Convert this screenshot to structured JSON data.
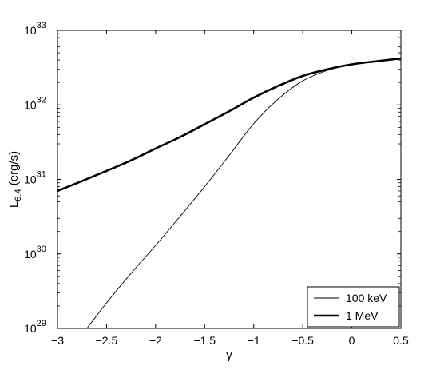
{
  "chart_data": {
    "type": "line",
    "title": "",
    "xlabel": "γ",
    "ylabel_main": "L",
    "ylabel_sub": "6.4",
    "ylabel_unit": " (erg/s)",
    "xlim": [
      -3,
      0.5
    ],
    "ylim": [
      1e+29,
      1e+33
    ],
    "yscale": "log",
    "grid": false,
    "legend_position": "bottom-right",
    "x_ticks": [
      {
        "value": -3,
        "label": "−3"
      },
      {
        "value": -2.5,
        "label": "−2.5"
      },
      {
        "value": -2,
        "label": "−2"
      },
      {
        "value": -1.5,
        "label": "−1.5"
      },
      {
        "value": -1,
        "label": "−1"
      },
      {
        "value": -0.5,
        "label": "−0.5"
      },
      {
        "value": 0,
        "label": "0"
      },
      {
        "value": 0.5,
        "label": "0.5"
      }
    ],
    "y_ticks": [
      {
        "value": 1e+29,
        "base": "10",
        "exp": "29"
      },
      {
        "value": 1e+30,
        "base": "10",
        "exp": "30"
      },
      {
        "value": 1e+31,
        "base": "10",
        "exp": "31"
      },
      {
        "value": 1e+32,
        "base": "10",
        "exp": "32"
      },
      {
        "value": 1e+33,
        "base": "10",
        "exp": "33"
      }
    ],
    "series": [
      {
        "name": "100 keV",
        "style": "thin",
        "color": "#000000",
        "x": [
          -2.7,
          -2.5,
          -2.25,
          -2.0,
          -1.75,
          -1.5,
          -1.25,
          -1.0,
          -0.75,
          -0.5,
          -0.25,
          0.0,
          0.25,
          0.5
        ],
        "y": [
          1e+29,
          2.2e+29,
          5.5e+29,
          1.3e+30,
          3.2e+30,
          8e+30,
          2.1e+31,
          5.6e+31,
          1.2e+32,
          2.1e+32,
          2.9e+32,
          3.5e+32,
          3.9e+32,
          4.2e+32
        ]
      },
      {
        "name": "1 MeV",
        "style": "thick",
        "color": "#000000",
        "x": [
          -3.0,
          -2.75,
          -2.5,
          -2.25,
          -2.0,
          -1.75,
          -1.5,
          -1.25,
          -1.0,
          -0.75,
          -0.5,
          -0.25,
          0.0,
          0.25,
          0.5
        ],
        "y": [
          7e+30,
          9.5e+30,
          1.3e+31,
          1.8e+31,
          2.6e+31,
          3.7e+31,
          5.5e+31,
          8.2e+31,
          1.25e+32,
          1.8e+32,
          2.45e+32,
          3e+32,
          3.5e+32,
          3.85e+32,
          4.2e+32
        ]
      }
    ]
  }
}
